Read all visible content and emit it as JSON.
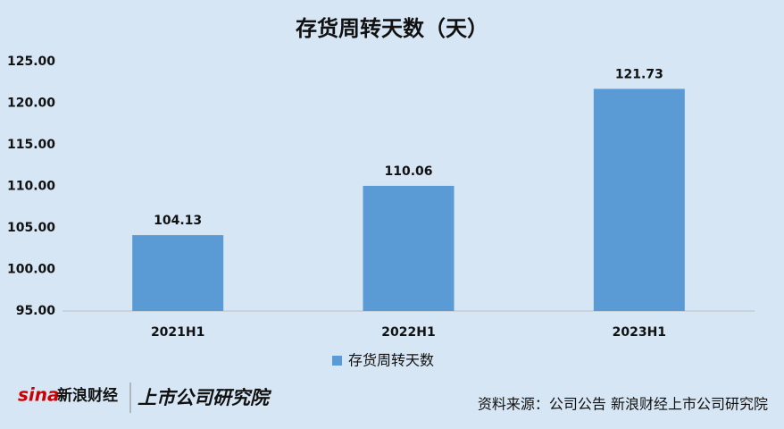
{
  "chart_data": {
    "type": "bar",
    "title": "存货周转天数（天）",
    "categories": [
      "2021H1",
      "2022H1",
      "2023H1"
    ],
    "series": [
      {
        "name": "存货周转天数",
        "color": "#5b9bd5",
        "values": [
          104.13,
          110.06,
          121.73
        ]
      }
    ],
    "ylim": [
      95,
      125
    ],
    "yticks": [
      {
        "value": 95,
        "label": "95.00"
      },
      {
        "value": 100,
        "label": "100.00"
      },
      {
        "value": 105,
        "label": "105.00"
      },
      {
        "value": 110,
        "label": "110.00"
      },
      {
        "value": 115,
        "label": "115.00"
      },
      {
        "value": 120,
        "label": "120.00"
      },
      {
        "value": 125,
        "label": "125.00"
      }
    ],
    "grid": false,
    "legend": "bottom"
  },
  "footer": {
    "logo_left": "新浪财经",
    "logo_right": "上市公司研究院",
    "source": "资料来源：公司公告 新浪财经上市公司研究院"
  }
}
